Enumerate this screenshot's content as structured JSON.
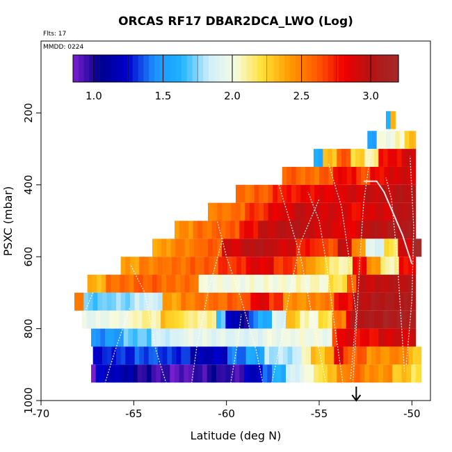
{
  "chart_data": {
    "type": "heatmap",
    "title": "ORCAS RF17 DBAR2DCA_LWO (Log)",
    "flights_note": "Flts: 17",
    "date_note": "MMDD: 0224",
    "xlabel": "Latitude (deg N)",
    "ylabel": "PSXC (mbar)",
    "xlim": [
      -70,
      -49
    ],
    "ylim": [
      1000,
      0
    ],
    "x_ticks": [
      -70,
      -65,
      -60,
      -55,
      -50
    ],
    "x_tick_labels": [
      "-70",
      "-65",
      "-60",
      "-55",
      "-50"
    ],
    "y_ticks": [
      200,
      400,
      600,
      800,
      1000
    ],
    "y_tick_labels": [
      "200",
      "400",
      "600",
      "800",
      "1000"
    ],
    "colorbar": {
      "range": [
        0.85,
        3.2
      ],
      "ticks": [
        1.0,
        1.5,
        2.0,
        2.5,
        3.0
      ],
      "tick_labels": [
        "1.0",
        "1.5",
        "2.0",
        "2.5",
        "3.0"
      ],
      "stops": [
        "#7a1fd0",
        "#00008b",
        "#0000cd",
        "#1e90ff",
        "#1eb4ff",
        "#cfeefc",
        "#f7fbe0",
        "#ffe033",
        "#ff9a00",
        "#ff5a00",
        "#ee0000",
        "#b41414",
        "#a52a2a"
      ]
    },
    "layers": [
      {
        "p": 220,
        "x0": -51.4,
        "x1": -50.9,
        "segs": [
          [
            -51.4,
            1.6
          ],
          [
            -51.2,
            2.0
          ],
          [
            -51.1,
            2.4
          ]
        ]
      },
      {
        "p": 275,
        "x0": -52.4,
        "x1": -49.8,
        "segs": [
          [
            -52.4,
            1.55
          ],
          [
            -52.0,
            2.0
          ],
          [
            -51.0,
            2.05
          ],
          [
            -50.3,
            2.3
          ]
        ]
      },
      {
        "p": 325,
        "x0": -55.3,
        "x1": -49.8,
        "segs": [
          [
            -55.3,
            1.6
          ],
          [
            -54.8,
            2.3
          ],
          [
            -54.0,
            2.6
          ],
          [
            -53.4,
            2.25
          ],
          [
            -52.6,
            2.1
          ],
          [
            -51.8,
            2.8
          ],
          [
            -50.6,
            2.9
          ]
        ]
      },
      {
        "p": 375,
        "x0": -57.0,
        "x1": -49.8,
        "segs": [
          [
            -57.0,
            2.6
          ],
          [
            -56.0,
            2.55
          ],
          [
            -55.0,
            2.6
          ],
          [
            -54.3,
            2.8
          ],
          [
            -53.0,
            2.65
          ],
          [
            -52.2,
            2.8
          ],
          [
            -51.2,
            2.9
          ]
        ]
      },
      {
        "p": 425,
        "x0": -59.5,
        "x1": -49.8,
        "segs": [
          [
            -59.5,
            2.55
          ],
          [
            -58.5,
            2.6
          ],
          [
            -57.5,
            2.75
          ],
          [
            -56.2,
            2.8
          ],
          [
            -55.0,
            2.85
          ],
          [
            -53.8,
            2.9
          ],
          [
            -52.5,
            2.95
          ],
          [
            -51.0,
            3.0
          ]
        ]
      },
      {
        "p": 475,
        "x0": -61.0,
        "x1": -49.8,
        "segs": [
          [
            -61.0,
            2.5
          ],
          [
            -60.0,
            2.55
          ],
          [
            -59.0,
            2.7
          ],
          [
            -57.8,
            2.85
          ],
          [
            -56.6,
            2.95
          ],
          [
            -55.2,
            2.9
          ],
          [
            -53.5,
            2.8
          ],
          [
            -52.5,
            2.9
          ],
          [
            -51.0,
            3.0
          ]
        ]
      },
      {
        "p": 525,
        "x0": -62.8,
        "x1": -49.8,
        "segs": [
          [
            -62.8,
            2.45
          ],
          [
            -61.8,
            2.55
          ],
          [
            -60.6,
            2.6
          ],
          [
            -59.4,
            2.8
          ],
          [
            -58.2,
            2.95
          ],
          [
            -57.0,
            3.0
          ],
          [
            -55.6,
            2.9
          ],
          [
            -54.0,
            2.85
          ],
          [
            -52.8,
            3.0
          ],
          [
            -51.2,
            3.05
          ]
        ]
      },
      {
        "p": 575,
        "x0": -64.0,
        "x1": -49.5,
        "segs": [
          [
            -64.0,
            2.4
          ],
          [
            -63.0,
            2.5
          ],
          [
            -61.6,
            2.6
          ],
          [
            -60.2,
            2.9
          ],
          [
            -59.0,
            3.0
          ],
          [
            -57.6,
            2.9
          ],
          [
            -56.2,
            2.75
          ],
          [
            -55.0,
            2.65
          ],
          [
            -54.0,
            2.95
          ],
          [
            -53.2,
            2.45
          ],
          [
            -52.4,
            1.9
          ],
          [
            -51.6,
            2.2
          ],
          [
            -50.8,
            2.9
          ],
          [
            -50.0,
            3.2
          ]
        ]
      },
      {
        "p": 625,
        "x0": -65.7,
        "x1": -49.8,
        "segs": [
          [
            -65.7,
            2.4
          ],
          [
            -64.8,
            2.5
          ],
          [
            -63.5,
            2.55
          ],
          [
            -62.0,
            2.6
          ],
          [
            -60.5,
            2.7
          ],
          [
            -59.0,
            2.85
          ],
          [
            -57.5,
            2.7
          ],
          [
            -56.2,
            2.45
          ],
          [
            -55.2,
            2.3
          ],
          [
            -54.4,
            2.1
          ],
          [
            -53.3,
            2.8
          ],
          [
            -52.4,
            2.45
          ],
          [
            -51.6,
            2.1
          ],
          [
            -50.8,
            2.8
          ]
        ]
      },
      {
        "p": 675,
        "x0": -67.5,
        "x1": -49.8,
        "segs": [
          [
            -67.5,
            2.35
          ],
          [
            -66.5,
            2.55
          ],
          [
            -65.0,
            2.6
          ],
          [
            -63.5,
            2.55
          ],
          [
            -61.4,
            2.0
          ],
          [
            -59.0,
            2.02
          ],
          [
            -56.5,
            2.05
          ],
          [
            -54.6,
            2.2
          ],
          [
            -53.6,
            2.6
          ],
          [
            -53.0,
            2.95
          ],
          [
            -51.5,
            3.0
          ]
        ]
      },
      {
        "p": 725,
        "x0": -68.2,
        "x1": -49.8,
        "segs": [
          [
            -68.2,
            2.55
          ],
          [
            -67.8,
            1.7
          ],
          [
            -66.5,
            1.75
          ],
          [
            -65.0,
            1.85
          ],
          [
            -63.5,
            2.4
          ],
          [
            -62.5,
            2.5
          ],
          [
            -61.5,
            2.55
          ],
          [
            -60.0,
            2.6
          ],
          [
            -58.6,
            2.85
          ],
          [
            -57.8,
            2.7
          ],
          [
            -57.0,
            2.45
          ],
          [
            -55.5,
            2.5
          ],
          [
            -54.3,
            2.8
          ],
          [
            -53.3,
            3.0
          ],
          [
            -52.2,
            3.05
          ]
        ]
      },
      {
        "p": 775,
        "x0": -67.8,
        "x1": -49.8,
        "segs": [
          [
            -67.8,
            1.95
          ],
          [
            -66.5,
            2.0
          ],
          [
            -65.0,
            2.1
          ],
          [
            -63.5,
            2.3
          ],
          [
            -62.8,
            2.2
          ],
          [
            -62.0,
            2.1
          ],
          [
            -60.5,
            1.7
          ],
          [
            -60.0,
            1.2
          ],
          [
            -59.4,
            1.0
          ],
          [
            -58.8,
            1.4
          ],
          [
            -58.2,
            1.6
          ],
          [
            -57.5,
            1.9
          ],
          [
            -56.8,
            2.3
          ],
          [
            -56.0,
            2.05
          ],
          [
            -55.0,
            2.2
          ],
          [
            -54.2,
            2.5
          ],
          [
            -53.6,
            2.85
          ],
          [
            -53.2,
            3.05
          ],
          [
            -51.5,
            3.1
          ]
        ]
      },
      {
        "p": 825,
        "x0": -67.3,
        "x1": -49.8,
        "segs": [
          [
            -67.3,
            1.45
          ],
          [
            -66.5,
            1.5
          ],
          [
            -65.5,
            1.7
          ],
          [
            -64.0,
            1.85
          ],
          [
            -62.5,
            1.95
          ],
          [
            -61.0,
            1.92
          ],
          [
            -59.5,
            1.9
          ],
          [
            -58.0,
            1.97
          ],
          [
            -56.5,
            2.0
          ],
          [
            -55.0,
            1.98
          ],
          [
            -54.4,
            2.6
          ],
          [
            -54.0,
            2.85
          ],
          [
            -53.0,
            2.8
          ],
          [
            -51.8,
            2.9
          ]
        ]
      },
      {
        "p": 875,
        "x0": -67.2,
        "x1": -49.5,
        "segs": [
          [
            -67.2,
            1.25
          ],
          [
            -66.5,
            1.3
          ],
          [
            -65.0,
            1.35
          ],
          [
            -63.5,
            1.3
          ],
          [
            -62.0,
            1.15
          ],
          [
            -61.0,
            1.2
          ],
          [
            -60.0,
            1.4
          ],
          [
            -59.0,
            1.55
          ],
          [
            -58.0,
            1.8
          ],
          [
            -56.0,
            2.1
          ],
          [
            -55.5,
            2.3
          ],
          [
            -54.6,
            2.35
          ],
          [
            -54.2,
            2.9
          ],
          [
            -53.8,
            2.6
          ],
          [
            -52.5,
            2.45
          ],
          [
            -51.0,
            2.5
          ],
          [
            -50.2,
            2.3
          ]
        ]
      },
      {
        "p": 925,
        "x0": -67.3,
        "x1": -49.5,
        "segs": [
          [
            -67.3,
            0.9
          ],
          [
            -67.0,
            1.2
          ],
          [
            -66.0,
            1.15
          ],
          [
            -65.0,
            1.0
          ],
          [
            -64.0,
            0.95
          ],
          [
            -63.0,
            0.9
          ],
          [
            -62.0,
            0.95
          ],
          [
            -61.0,
            1.0
          ],
          [
            -60.0,
            0.95
          ],
          [
            -59.0,
            1.2
          ],
          [
            -58.0,
            1.4
          ],
          [
            -57.5,
            1.6
          ],
          [
            -56.8,
            1.85
          ],
          [
            -56.0,
            2.0
          ],
          [
            -55.2,
            2.2
          ],
          [
            -54.5,
            2.35
          ],
          [
            -54.0,
            2.45
          ],
          [
            -53.5,
            2.55
          ],
          [
            -52.5,
            2.45
          ],
          [
            -51.0,
            2.3
          ],
          [
            -50.0,
            2.2
          ]
        ]
      }
    ],
    "annotations": [
      {
        "type": "arrow",
        "x": -53.0,
        "label": "down arrow at flight marker"
      }
    ]
  }
}
